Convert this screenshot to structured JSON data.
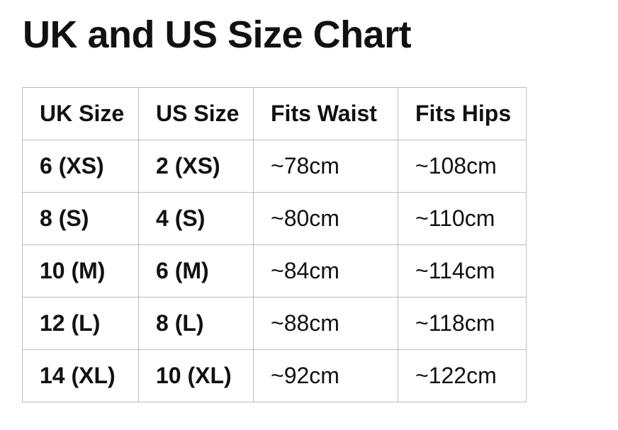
{
  "title": "UK and US Size Chart",
  "table": {
    "headers": [
      "UK Size",
      "US Size",
      "Fits Waist",
      "Fits Hips"
    ],
    "rows": [
      [
        "6 (XS)",
        "2 (XS)",
        "~78cm",
        "~108cm"
      ],
      [
        "8 (S)",
        "4 (S)",
        "~80cm",
        "~110cm"
      ],
      [
        "10 (M)",
        "6 (M)",
        "~84cm",
        "~114cm"
      ],
      [
        "12 (L)",
        "8 (L)",
        "~88cm",
        "~118cm"
      ],
      [
        "14 (XL)",
        "10 (XL)",
        "~92cm",
        "~122cm"
      ]
    ]
  }
}
